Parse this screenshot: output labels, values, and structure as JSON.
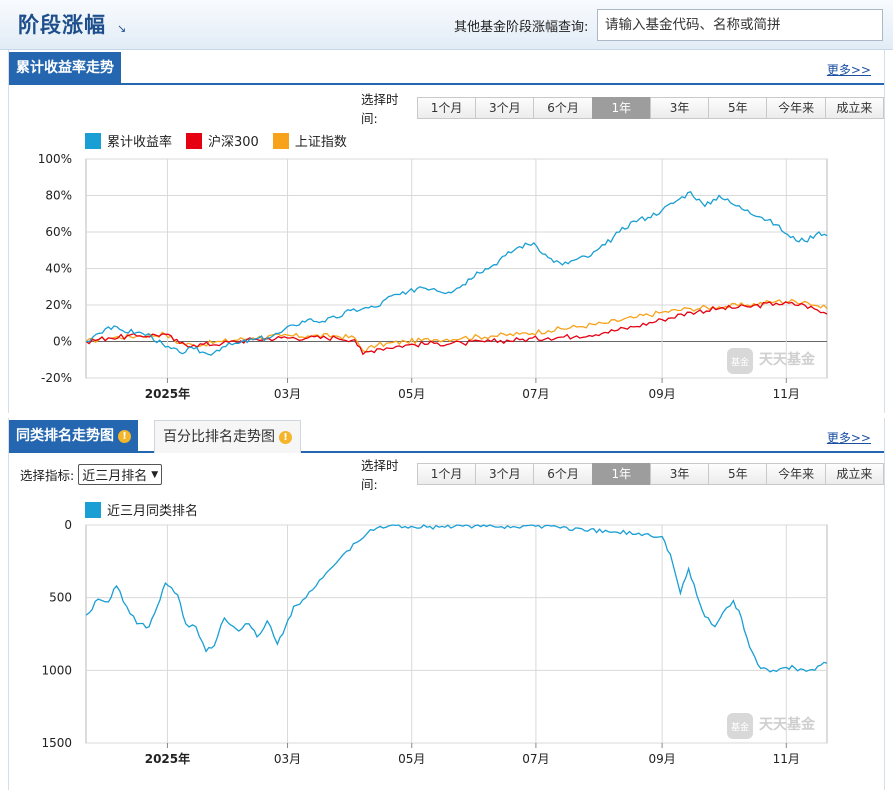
{
  "header": {
    "title": "阶段涨幅",
    "title_arrow": "↘",
    "query_label": "其他基金阶段涨幅查询:",
    "search_placeholder": "请输入基金代码、名称或简拼"
  },
  "section1": {
    "tab": "累计收益率走势",
    "more": "更多>>"
  },
  "section2": {
    "tab": "同类排名走势图",
    "tab2": "百分比排名走势图",
    "more": "更多>>",
    "indicator_label": "选择指标:",
    "indicator_value": "近三月排名"
  },
  "range": {
    "label": "选择时间:",
    "options": [
      "1个月",
      "3个月",
      "6个月",
      "1年",
      "3年",
      "5年",
      "今年来",
      "成立来"
    ],
    "active": "1年"
  },
  "watermark": {
    "brand": "天天基金",
    "badge": "基金"
  },
  "colors": {
    "blue": "#1a9fd4",
    "red": "#e50012",
    "orange": "#f7a21a",
    "accent": "#2467b0"
  },
  "chart_data": [
    {
      "type": "line",
      "y_unit": "%",
      "ylim": [
        -20,
        100
      ],
      "y_ticks": [
        "100%",
        "80%",
        "60%",
        "40%",
        "20%",
        "0%",
        "-20%"
      ],
      "x_range": [
        "2024-11-22",
        "2025-11-21"
      ],
      "x_ticks": [
        {
          "date": "2025-01-01",
          "label": "2025年",
          "bold": true
        },
        {
          "date": "2025-03-01",
          "label": "03月"
        },
        {
          "date": "2025-05-01",
          "label": "05月"
        },
        {
          "date": "2025-07-01",
          "label": "07月"
        },
        {
          "date": "2025-09-01",
          "label": "09月"
        },
        {
          "date": "2025-11-01",
          "label": "11月"
        }
      ],
      "grid": true,
      "legend_position": "top-left",
      "series": [
        {
          "name": "累计收益率",
          "color": "#1a9fd4",
          "points": [
            [
              "2024-11-22",
              0
            ],
            [
              "2024-11-27",
              4
            ],
            [
              "2024-12-03",
              8
            ],
            [
              "2024-12-10",
              6
            ],
            [
              "2024-12-17",
              5
            ],
            [
              "2024-12-24",
              3
            ],
            [
              "2024-12-31",
              -3
            ],
            [
              "2025-01-07",
              -6
            ],
            [
              "2025-01-14",
              -4
            ],
            [
              "2025-01-21",
              -7
            ],
            [
              "2025-01-28",
              -3
            ],
            [
              "2025-02-05",
              -1
            ],
            [
              "2025-02-12",
              1
            ],
            [
              "2025-02-19",
              2
            ],
            [
              "2025-02-26",
              5
            ],
            [
              "2025-03-04",
              9
            ],
            [
              "2025-03-11",
              12
            ],
            [
              "2025-03-18",
              11
            ],
            [
              "2025-03-25",
              13
            ],
            [
              "2025-04-01",
              17
            ],
            [
              "2025-04-07",
              18
            ],
            [
              "2025-04-14",
              19
            ],
            [
              "2025-04-21",
              25
            ],
            [
              "2025-04-28",
              26
            ],
            [
              "2025-05-05",
              30
            ],
            [
              "2025-05-12",
              29
            ],
            [
              "2025-05-19",
              27
            ],
            [
              "2025-05-26",
              31
            ],
            [
              "2025-06-02",
              38
            ],
            [
              "2025-06-09",
              41
            ],
            [
              "2025-06-16",
              47
            ],
            [
              "2025-06-23",
              52
            ],
            [
              "2025-06-30",
              54
            ],
            [
              "2025-07-07",
              46
            ],
            [
              "2025-07-14",
              42
            ],
            [
              "2025-07-21",
              45
            ],
            [
              "2025-07-28",
              47
            ],
            [
              "2025-08-04",
              53
            ],
            [
              "2025-08-11",
              60
            ],
            [
              "2025-08-18",
              66
            ],
            [
              "2025-08-25",
              68
            ],
            [
              "2025-09-01",
              72
            ],
            [
              "2025-09-08",
              77
            ],
            [
              "2025-09-15",
              82
            ],
            [
              "2025-09-22",
              74
            ],
            [
              "2025-09-29",
              80
            ],
            [
              "2025-10-06",
              75
            ],
            [
              "2025-10-13",
              72
            ],
            [
              "2025-10-20",
              68
            ],
            [
              "2025-10-27",
              64
            ],
            [
              "2025-11-03",
              57
            ],
            [
              "2025-11-10",
              55
            ],
            [
              "2025-11-17",
              60
            ],
            [
              "2025-11-21",
              58
            ]
          ]
        },
        {
          "name": "沪深300",
          "color": "#e50012",
          "points": [
            [
              "2024-11-22",
              0
            ],
            [
              "2024-12-03",
              2
            ],
            [
              "2024-12-17",
              3
            ],
            [
              "2024-12-31",
              4
            ],
            [
              "2025-01-07",
              -1
            ],
            [
              "2025-01-14",
              -2
            ],
            [
              "2025-01-28",
              -1
            ],
            [
              "2025-02-12",
              1
            ],
            [
              "2025-02-26",
              2
            ],
            [
              "2025-03-11",
              2
            ],
            [
              "2025-03-25",
              2
            ],
            [
              "2025-04-03",
              1
            ],
            [
              "2025-04-07",
              -7
            ],
            [
              "2025-04-14",
              -4
            ],
            [
              "2025-04-28",
              -2
            ],
            [
              "2025-05-12",
              -1
            ],
            [
              "2025-05-26",
              -1
            ],
            [
              "2025-06-09",
              0
            ],
            [
              "2025-06-23",
              1
            ],
            [
              "2025-07-07",
              2
            ],
            [
              "2025-07-21",
              3
            ],
            [
              "2025-08-04",
              5
            ],
            [
              "2025-08-18",
              8
            ],
            [
              "2025-09-01",
              12
            ],
            [
              "2025-09-15",
              16
            ],
            [
              "2025-09-29",
              18
            ],
            [
              "2025-10-13",
              19
            ],
            [
              "2025-10-27",
              21
            ],
            [
              "2025-11-10",
              20
            ],
            [
              "2025-11-21",
              15
            ]
          ]
        },
        {
          "name": "上证指数",
          "color": "#f7a21a",
          "points": [
            [
              "2024-11-22",
              0
            ],
            [
              "2024-12-03",
              2
            ],
            [
              "2024-12-17",
              3
            ],
            [
              "2024-12-31",
              4
            ],
            [
              "2025-01-07",
              -1
            ],
            [
              "2025-01-14",
              -2
            ],
            [
              "2025-01-28",
              0
            ],
            [
              "2025-02-12",
              2
            ],
            [
              "2025-02-26",
              3
            ],
            [
              "2025-03-11",
              3
            ],
            [
              "2025-03-25",
              3
            ],
            [
              "2025-04-03",
              2
            ],
            [
              "2025-04-07",
              -5
            ],
            [
              "2025-04-14",
              -2
            ],
            [
              "2025-04-28",
              0
            ],
            [
              "2025-05-12",
              1
            ],
            [
              "2025-05-26",
              2
            ],
            [
              "2025-06-09",
              3
            ],
            [
              "2025-06-23",
              4
            ],
            [
              "2025-07-07",
              6
            ],
            [
              "2025-07-21",
              8
            ],
            [
              "2025-08-04",
              10
            ],
            [
              "2025-08-18",
              13
            ],
            [
              "2025-09-01",
              16
            ],
            [
              "2025-09-15",
              18
            ],
            [
              "2025-09-29",
              19
            ],
            [
              "2025-10-13",
              20
            ],
            [
              "2025-10-27",
              22
            ],
            [
              "2025-11-10",
              22
            ],
            [
              "2025-11-21",
              18
            ]
          ]
        }
      ]
    },
    {
      "type": "line",
      "ylim": [
        0,
        1500
      ],
      "y_reversed": true,
      "y_ticks": [
        "0",
        "500",
        "1000",
        "1500"
      ],
      "x_range": [
        "2024-11-22",
        "2025-11-21"
      ],
      "x_ticks": [
        {
          "date": "2025-01-01",
          "label": "2025年",
          "bold": true
        },
        {
          "date": "2025-03-01",
          "label": "03月"
        },
        {
          "date": "2025-05-01",
          "label": "05月"
        },
        {
          "date": "2025-07-01",
          "label": "07月"
        },
        {
          "date": "2025-09-01",
          "label": "09月"
        },
        {
          "date": "2025-11-01",
          "label": "11月"
        }
      ],
      "grid": true,
      "legend_position": "top-left",
      "series": [
        {
          "name": "近三月同类排名",
          "color": "#1a9fd4",
          "points": [
            [
              "2024-11-22",
              620
            ],
            [
              "2024-11-28",
              510
            ],
            [
              "2024-12-03",
              530
            ],
            [
              "2024-12-07",
              420
            ],
            [
              "2024-12-12",
              560
            ],
            [
              "2024-12-17",
              680
            ],
            [
              "2024-12-23",
              700
            ],
            [
              "2024-12-27",
              560
            ],
            [
              "2024-12-31",
              400
            ],
            [
              "2025-01-06",
              480
            ],
            [
              "2025-01-10",
              680
            ],
            [
              "2025-01-15",
              700
            ],
            [
              "2025-01-20",
              870
            ],
            [
              "2025-01-24",
              830
            ],
            [
              "2025-01-29",
              640
            ],
            [
              "2025-02-05",
              730
            ],
            [
              "2025-02-10",
              680
            ],
            [
              "2025-02-14",
              770
            ],
            [
              "2025-02-19",
              660
            ],
            [
              "2025-02-24",
              820
            ],
            [
              "2025-02-28",
              700
            ],
            [
              "2025-03-04",
              560
            ],
            [
              "2025-03-10",
              500
            ],
            [
              "2025-03-15",
              420
            ],
            [
              "2025-03-20",
              330
            ],
            [
              "2025-03-25",
              260
            ],
            [
              "2025-03-30",
              180
            ],
            [
              "2025-04-04",
              120
            ],
            [
              "2025-04-09",
              60
            ],
            [
              "2025-04-14",
              20
            ],
            [
              "2025-04-20",
              5
            ],
            [
              "2025-05-10",
              10
            ],
            [
              "2025-06-01",
              5
            ],
            [
              "2025-06-20",
              10
            ],
            [
              "2025-07-10",
              5
            ],
            [
              "2025-07-25",
              40
            ],
            [
              "2025-08-10",
              50
            ],
            [
              "2025-08-25",
              60
            ],
            [
              "2025-09-01",
              80
            ],
            [
              "2025-09-05",
              200
            ],
            [
              "2025-09-10",
              470
            ],
            [
              "2025-09-14",
              300
            ],
            [
              "2025-09-18",
              480
            ],
            [
              "2025-09-22",
              630
            ],
            [
              "2025-09-27",
              700
            ],
            [
              "2025-10-01",
              600
            ],
            [
              "2025-10-06",
              520
            ],
            [
              "2025-10-10",
              640
            ],
            [
              "2025-10-14",
              840
            ],
            [
              "2025-10-18",
              960
            ],
            [
              "2025-10-24",
              1010
            ],
            [
              "2025-11-01",
              980
            ],
            [
              "2025-11-08",
              990
            ],
            [
              "2025-11-15",
              1000
            ],
            [
              "2025-11-21",
              950
            ]
          ]
        }
      ]
    }
  ]
}
